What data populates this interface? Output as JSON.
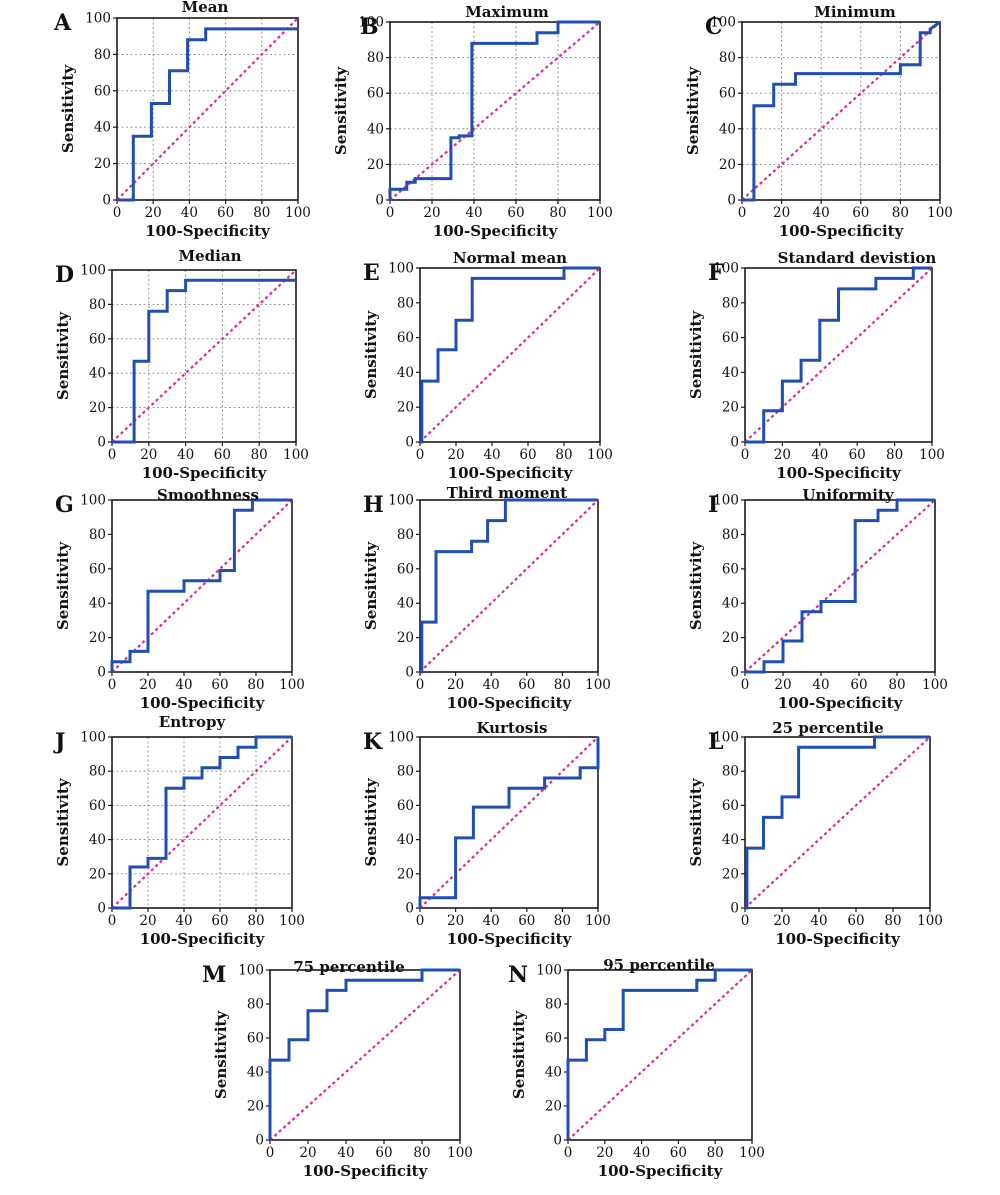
{
  "chart_data": [
    {
      "letter": "A",
      "title": "Mean",
      "type": "line",
      "xlabel": "100-Specificity",
      "ylabel": "Sensitivity",
      "xlim": [
        0,
        100
      ],
      "ylim": [
        0,
        100
      ],
      "grid": true,
      "xticks": [
        0,
        20,
        40,
        60,
        80,
        100
      ],
      "yticks": [
        0,
        20,
        40,
        60,
        80,
        100
      ],
      "series": [
        {
          "x": [
            0,
            0,
            9,
            9,
            19,
            19,
            29,
            29,
            39,
            39,
            49,
            49,
            100
          ],
          "y": [
            0,
            0,
            0,
            35,
            35,
            53,
            53,
            71,
            71,
            88,
            88,
            94,
            94
          ]
        }
      ]
    },
    {
      "letter": "B",
      "title": "Maximum",
      "type": "line",
      "xlabel": "100-Specificity",
      "ylabel": "Sensitivity",
      "xlim": [
        0,
        100
      ],
      "ylim": [
        0,
        100
      ],
      "grid": true,
      "xticks": [
        0,
        20,
        40,
        60,
        80,
        100
      ],
      "yticks": [
        0,
        20,
        40,
        60,
        80,
        100
      ],
      "series": [
        {
          "x": [
            0,
            0,
            8,
            8,
            12,
            12,
            29,
            29,
            33,
            33,
            39,
            39,
            70,
            70,
            80,
            80,
            100
          ],
          "y": [
            0,
            6,
            6,
            10,
            10,
            12,
            12,
            35,
            35,
            36,
            36,
            88,
            88,
            94,
            94,
            100,
            100
          ]
        }
      ]
    },
    {
      "letter": "C",
      "title": "Minimum",
      "type": "line",
      "xlabel": "100-Specificity",
      "ylabel": "Sensitivity",
      "xlim": [
        0,
        100
      ],
      "ylim": [
        0,
        100
      ],
      "grid": true,
      "xticks": [
        0,
        20,
        40,
        60,
        80,
        100
      ],
      "yticks": [
        0,
        20,
        40,
        60,
        80,
        100
      ],
      "series": [
        {
          "x": [
            0,
            6,
            6,
            16,
            16,
            27,
            27,
            80,
            80,
            90,
            90,
            95,
            95,
            100
          ],
          "y": [
            0,
            0,
            53,
            53,
            65,
            65,
            71,
            71,
            76,
            76,
            94,
            94,
            96,
            100
          ]
        }
      ]
    },
    {
      "letter": "D",
      "title": "Median",
      "type": "line",
      "xlabel": "100-Specificity",
      "ylabel": "Sensitivity",
      "xlim": [
        0,
        100
      ],
      "ylim": [
        0,
        100
      ],
      "grid": true,
      "xticks": [
        0,
        20,
        40,
        60,
        80,
        100
      ],
      "yticks": [
        0,
        20,
        40,
        60,
        80,
        100
      ],
      "series": [
        {
          "x": [
            0,
            12,
            12,
            20,
            20,
            30,
            30,
            40,
            40,
            100
          ],
          "y": [
            0,
            0,
            47,
            47,
            76,
            76,
            88,
            88,
            94,
            94
          ]
        }
      ]
    },
    {
      "letter": "E",
      "title": "Normal mean",
      "type": "line",
      "xlabel": "100-Specificity",
      "ylabel": "Sensitivity",
      "xlim": [
        0,
        100
      ],
      "ylim": [
        0,
        100
      ],
      "grid": false,
      "xticks": [
        0,
        20,
        40,
        60,
        80,
        100
      ],
      "yticks": [
        0,
        20,
        40,
        60,
        80,
        100
      ],
      "series": [
        {
          "x": [
            0,
            1,
            1,
            10,
            10,
            20,
            20,
            29,
            29,
            80,
            80,
            100
          ],
          "y": [
            0,
            0,
            35,
            35,
            53,
            53,
            70,
            70,
            94,
            94,
            100,
            100
          ]
        }
      ]
    },
    {
      "letter": "F",
      "title": "Standard devistion",
      "type": "line",
      "xlabel": "100-Specificity",
      "ylabel": "Sensitivity",
      "xlim": [
        0,
        100
      ],
      "ylim": [
        0,
        100
      ],
      "grid": false,
      "xticks": [
        0,
        20,
        40,
        60,
        80,
        100
      ],
      "yticks": [
        0,
        20,
        40,
        60,
        80,
        100
      ],
      "series": [
        {
          "x": [
            0,
            10,
            10,
            20,
            20,
            30,
            30,
            40,
            40,
            50,
            50,
            70,
            70,
            90,
            90,
            100
          ],
          "y": [
            0,
            0,
            18,
            18,
            35,
            35,
            47,
            47,
            70,
            70,
            88,
            88,
            94,
            94,
            100,
            100
          ]
        }
      ]
    },
    {
      "letter": "G",
      "title": "Smoothness",
      "type": "line",
      "xlabel": "100-Specificity",
      "ylabel": "Sensitivity",
      "xlim": [
        0,
        100
      ],
      "ylim": [
        0,
        100
      ],
      "grid": false,
      "xticks": [
        0,
        20,
        40,
        60,
        80,
        100
      ],
      "yticks": [
        0,
        20,
        40,
        60,
        80,
        100
      ],
      "series": [
        {
          "x": [
            0,
            0,
            10,
            10,
            20,
            20,
            40,
            40,
            60,
            60,
            68,
            68,
            78,
            78,
            100
          ],
          "y": [
            0,
            6,
            6,
            12,
            12,
            47,
            47,
            53,
            53,
            59,
            59,
            94,
            94,
            100,
            100
          ]
        }
      ]
    },
    {
      "letter": "H",
      "title": "Third moment",
      "type": "line",
      "xlabel": "100-Specificity",
      "ylabel": "Sensitivity",
      "xlim": [
        0,
        100
      ],
      "ylim": [
        0,
        100
      ],
      "grid": false,
      "xticks": [
        0,
        20,
        40,
        60,
        80,
        100
      ],
      "yticks": [
        0,
        20,
        40,
        60,
        80,
        100
      ],
      "series": [
        {
          "x": [
            0,
            1,
            1,
            9,
            9,
            29,
            29,
            38,
            38,
            48,
            48,
            100
          ],
          "y": [
            0,
            0,
            29,
            29,
            70,
            70,
            76,
            76,
            88,
            88,
            100,
            100
          ]
        }
      ]
    },
    {
      "letter": "I",
      "title": "Uniformity",
      "type": "line",
      "xlabel": "100-Specificity",
      "ylabel": "Sensitivity",
      "xlim": [
        0,
        100
      ],
      "ylim": [
        0,
        100
      ],
      "grid": false,
      "xticks": [
        0,
        20,
        40,
        60,
        80,
        100
      ],
      "yticks": [
        0,
        20,
        40,
        60,
        80,
        100
      ],
      "series": [
        {
          "x": [
            0,
            10,
            10,
            20,
            20,
            30,
            30,
            40,
            40,
            58,
            58,
            70,
            70,
            80,
            80,
            100
          ],
          "y": [
            0,
            0,
            6,
            6,
            18,
            18,
            35,
            35,
            41,
            41,
            88,
            88,
            94,
            94,
            100,
            100
          ]
        }
      ]
    },
    {
      "letter": "J",
      "title": "Entropy",
      "type": "line",
      "xlabel": "100-Specificity",
      "ylabel": "Sensitivity",
      "xlim": [
        0,
        100
      ],
      "ylim": [
        0,
        100
      ],
      "grid": true,
      "xticks": [
        0,
        20,
        40,
        60,
        80,
        100
      ],
      "yticks": [
        0,
        20,
        40,
        60,
        80,
        100
      ],
      "series": [
        {
          "x": [
            0,
            10,
            10,
            20,
            20,
            30,
            30,
            40,
            40,
            50,
            50,
            60,
            60,
            70,
            70,
            80,
            80,
            100
          ],
          "y": [
            0,
            0,
            24,
            24,
            29,
            29,
            70,
            70,
            76,
            76,
            82,
            82,
            88,
            88,
            94,
            94,
            100,
            100
          ]
        }
      ]
    },
    {
      "letter": "K",
      "title": "Kurtosis",
      "type": "line",
      "xlabel": "100-Specificity",
      "ylabel": "Sensitivity",
      "xlim": [
        0,
        100
      ],
      "ylim": [
        0,
        100
      ],
      "grid": false,
      "xticks": [
        0,
        20,
        40,
        60,
        80,
        100
      ],
      "yticks": [
        0,
        20,
        40,
        60,
        80,
        100
      ],
      "series": [
        {
          "x": [
            0,
            0,
            10,
            20,
            20,
            30,
            30,
            50,
            50,
            70,
            70,
            80,
            80,
            90,
            90,
            100,
            100
          ],
          "y": [
            0,
            6,
            6,
            6,
            41,
            41,
            59,
            59,
            70,
            70,
            76,
            76,
            76,
            76,
            82,
            82,
            100
          ]
        }
      ]
    },
    {
      "letter": "L",
      "title": "25 percentile",
      "type": "line",
      "xlabel": "100-Specificity",
      "ylabel": "Sensitivity",
      "xlim": [
        0,
        100
      ],
      "ylim": [
        0,
        100
      ],
      "grid": false,
      "xticks": [
        0,
        20,
        40,
        60,
        80,
        100
      ],
      "yticks": [
        0,
        20,
        40,
        60,
        80,
        100
      ],
      "series": [
        {
          "x": [
            0,
            1,
            1,
            10,
            10,
            20,
            20,
            29,
            29,
            70,
            70,
            100
          ],
          "y": [
            0,
            0,
            35,
            35,
            53,
            53,
            65,
            65,
            94,
            94,
            100,
            100
          ]
        }
      ]
    },
    {
      "letter": "M",
      "title": "75 percentile",
      "type": "line",
      "xlabel": "100-Specificity",
      "ylabel": "Sensitivity",
      "xlim": [
        0,
        100
      ],
      "ylim": [
        0,
        100
      ],
      "grid": false,
      "xticks": [
        0,
        20,
        40,
        60,
        80,
        100
      ],
      "yticks": [
        0,
        20,
        40,
        60,
        80,
        100
      ],
      "series": [
        {
          "x": [
            0,
            0,
            10,
            10,
            20,
            20,
            30,
            30,
            40,
            40,
            80,
            80,
            100
          ],
          "y": [
            0,
            47,
            47,
            59,
            59,
            76,
            76,
            88,
            88,
            94,
            94,
            100,
            100
          ]
        }
      ]
    },
    {
      "letter": "N",
      "title": "95 percentile",
      "type": "line",
      "xlabel": "100-Specificity",
      "ylabel": "Sensitivity",
      "xlim": [
        0,
        100
      ],
      "ylim": [
        0,
        100
      ],
      "grid": false,
      "xticks": [
        0,
        20,
        40,
        60,
        80,
        100
      ],
      "yticks": [
        0,
        20,
        40,
        60,
        80,
        100
      ],
      "series": [
        {
          "x": [
            0,
            0,
            10,
            10,
            20,
            20,
            30,
            30,
            70,
            70,
            80,
            80,
            100
          ],
          "y": [
            0,
            47,
            47,
            59,
            59,
            65,
            65,
            88,
            88,
            94,
            94,
            100,
            100
          ]
        }
      ]
    }
  ]
}
